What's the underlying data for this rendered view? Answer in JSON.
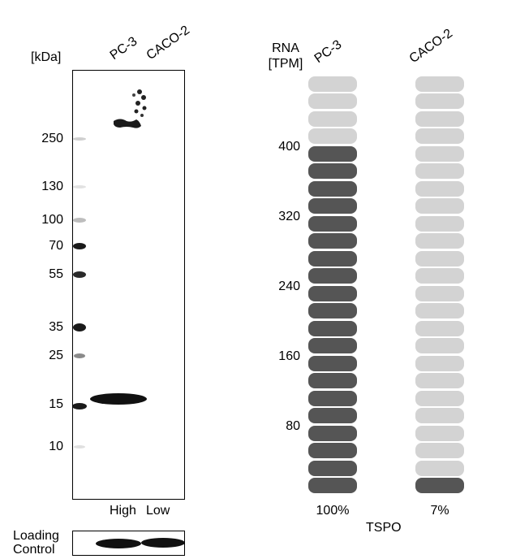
{
  "western_blot": {
    "kda_label": "[kDa]",
    "lanes": [
      {
        "name": "PC-3",
        "level": "High"
      },
      {
        "name": "CACO-2",
        "level": "Low"
      }
    ],
    "mw_markers": [
      "250",
      "130",
      "100",
      "70",
      "55",
      "35",
      "25",
      "15",
      "10"
    ],
    "loading_control_label": [
      "Loading",
      "Control"
    ]
  },
  "rna": {
    "header": [
      "RNA",
      "[TPM]"
    ],
    "ticks": [
      "400",
      "320",
      "240",
      "160",
      "80"
    ],
    "gene": "TSPO",
    "colors": {
      "filled": "#555555",
      "empty": "#d3d3d3"
    },
    "total_segments": 24,
    "columns": [
      {
        "name": "PC-3",
        "percent_label": "100%",
        "filled_segments": 20
      },
      {
        "name": "CACO-2",
        "percent_label": "7%",
        "filled_segments": 1
      }
    ]
  }
}
